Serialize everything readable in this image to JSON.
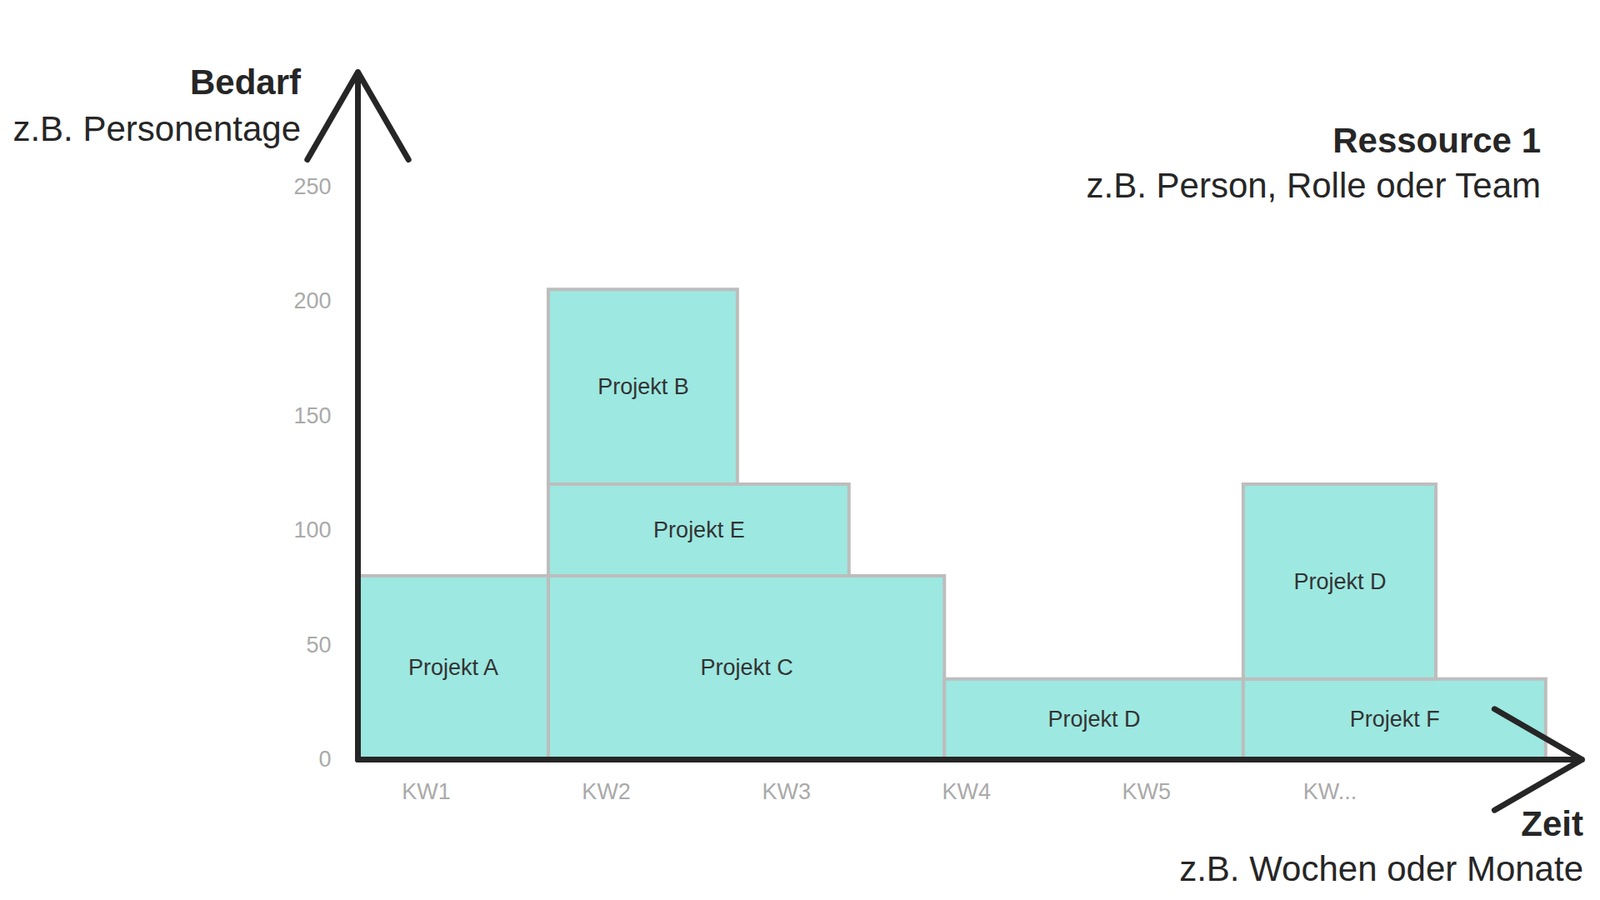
{
  "chart_data": {
    "type": "bar",
    "stacked": true,
    "title": "Ressource 1",
    "subtitle": "z.B. Person, Rolle oder Team",
    "ylabel": "Bedarf",
    "ylabel_note": "z.B. Personentage",
    "xlabel": "Zeit",
    "xlabel_note": "z.B. Wochen oder Monate",
    "color": "#9de8e1",
    "grid": false,
    "series": [
      {
        "name": "Projekt A",
        "start": 0,
        "end": 1.06,
        "value": 80
      },
      {
        "name": "Projekt C",
        "start": 1.06,
        "end": 3.26,
        "value": 80
      },
      {
        "name": "Projekt E",
        "start": 1.06,
        "end": 2.73,
        "value": 40
      },
      {
        "name": "Projekt B",
        "start": 1.06,
        "end": 2.11,
        "value": 85
      },
      {
        "name": "Projekt D",
        "start": 3.26,
        "end": 4.92,
        "value": 35
      },
      {
        "name": "Projekt F",
        "start": 4.92,
        "end": 6.6,
        "value": 35
      },
      {
        "name": "Projekt D",
        "start": 4.92,
        "end": 5.99,
        "value": 85
      }
    ],
    "xlim": [
      0,
      6.8
    ],
    "xticks": [
      {
        "value": 0.38,
        "label": "KW1"
      },
      {
        "value": 1.38,
        "label": "KW2"
      },
      {
        "value": 2.38,
        "label": "KW3"
      },
      {
        "value": 3.38,
        "label": "KW4"
      },
      {
        "value": 4.38,
        "label": "KW5"
      },
      {
        "value": 5.4,
        "label": "KW..."
      }
    ],
    "ylim": [
      0,
      300
    ],
    "yticks": [
      0,
      50,
      100,
      150,
      200,
      250
    ]
  }
}
